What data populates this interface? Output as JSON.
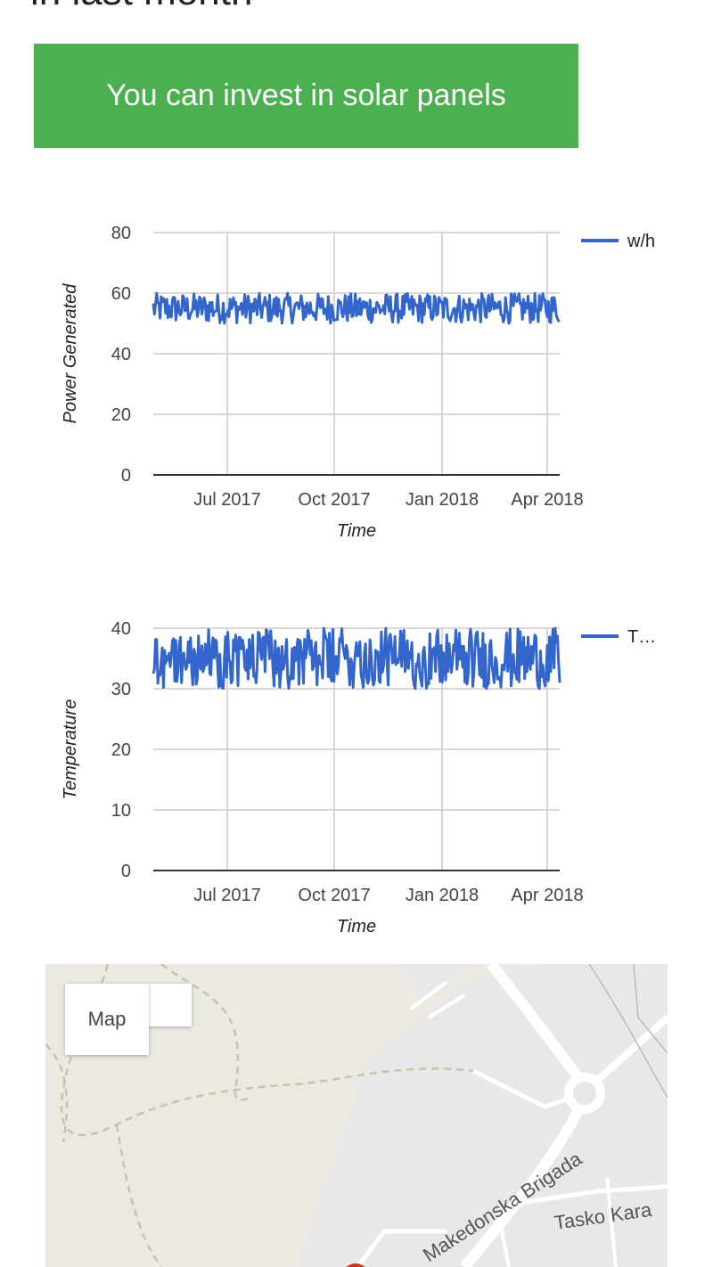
{
  "page": {
    "heading": "in last month",
    "banner_text": "You can invest in solar panels",
    "banner_color": "#4caf50"
  },
  "charts": [
    {
      "type": "line",
      "ylabel": "Power Generated",
      "xlabel": "Time",
      "ylim": [
        0,
        80
      ],
      "yticks": [
        0,
        20,
        40,
        60,
        80
      ],
      "xticks": [
        "Jul 2017",
        "Oct 2017",
        "Jan 2018",
        "Apr 2018"
      ],
      "legend": "w/h",
      "legend_position": "right",
      "color": "#3366cc",
      "band_min": 50,
      "band_max": 60,
      "end_value": 51
    },
    {
      "type": "line",
      "ylabel": "Temperature",
      "xlabel": "Time",
      "ylim": [
        0,
        40
      ],
      "yticks": [
        0,
        10,
        20,
        30,
        40
      ],
      "xticks": [
        "Jul 2017",
        "Oct 2017",
        "Jan 2018",
        "Apr 2018"
      ],
      "legend": "T…",
      "legend_position": "right",
      "color": "#3366cc",
      "band_min": 30,
      "band_max": 40,
      "end_value": 31
    }
  ],
  "chart_data": [
    {
      "type": "line",
      "title": "",
      "xlabel": "Time",
      "ylabel": "Power Generated",
      "ylim": [
        0,
        80
      ],
      "x_range": [
        "2017-04",
        "2018-04"
      ],
      "series": [
        {
          "name": "w/h",
          "min": 50,
          "max": 60
        }
      ],
      "grid": true,
      "legend": "right"
    },
    {
      "type": "line",
      "title": "",
      "xlabel": "Time",
      "ylabel": "Temperature",
      "ylim": [
        0,
        40
      ],
      "x_range": [
        "2017-04",
        "2018-04"
      ],
      "series": [
        {
          "name": "T…",
          "min": 30,
          "max": 40
        }
      ],
      "grid": true,
      "legend": "right"
    }
  ],
  "map": {
    "toggle_label": "Map",
    "streets": [
      "Makedonska Brigada",
      "Tasko Kara"
    ]
  }
}
